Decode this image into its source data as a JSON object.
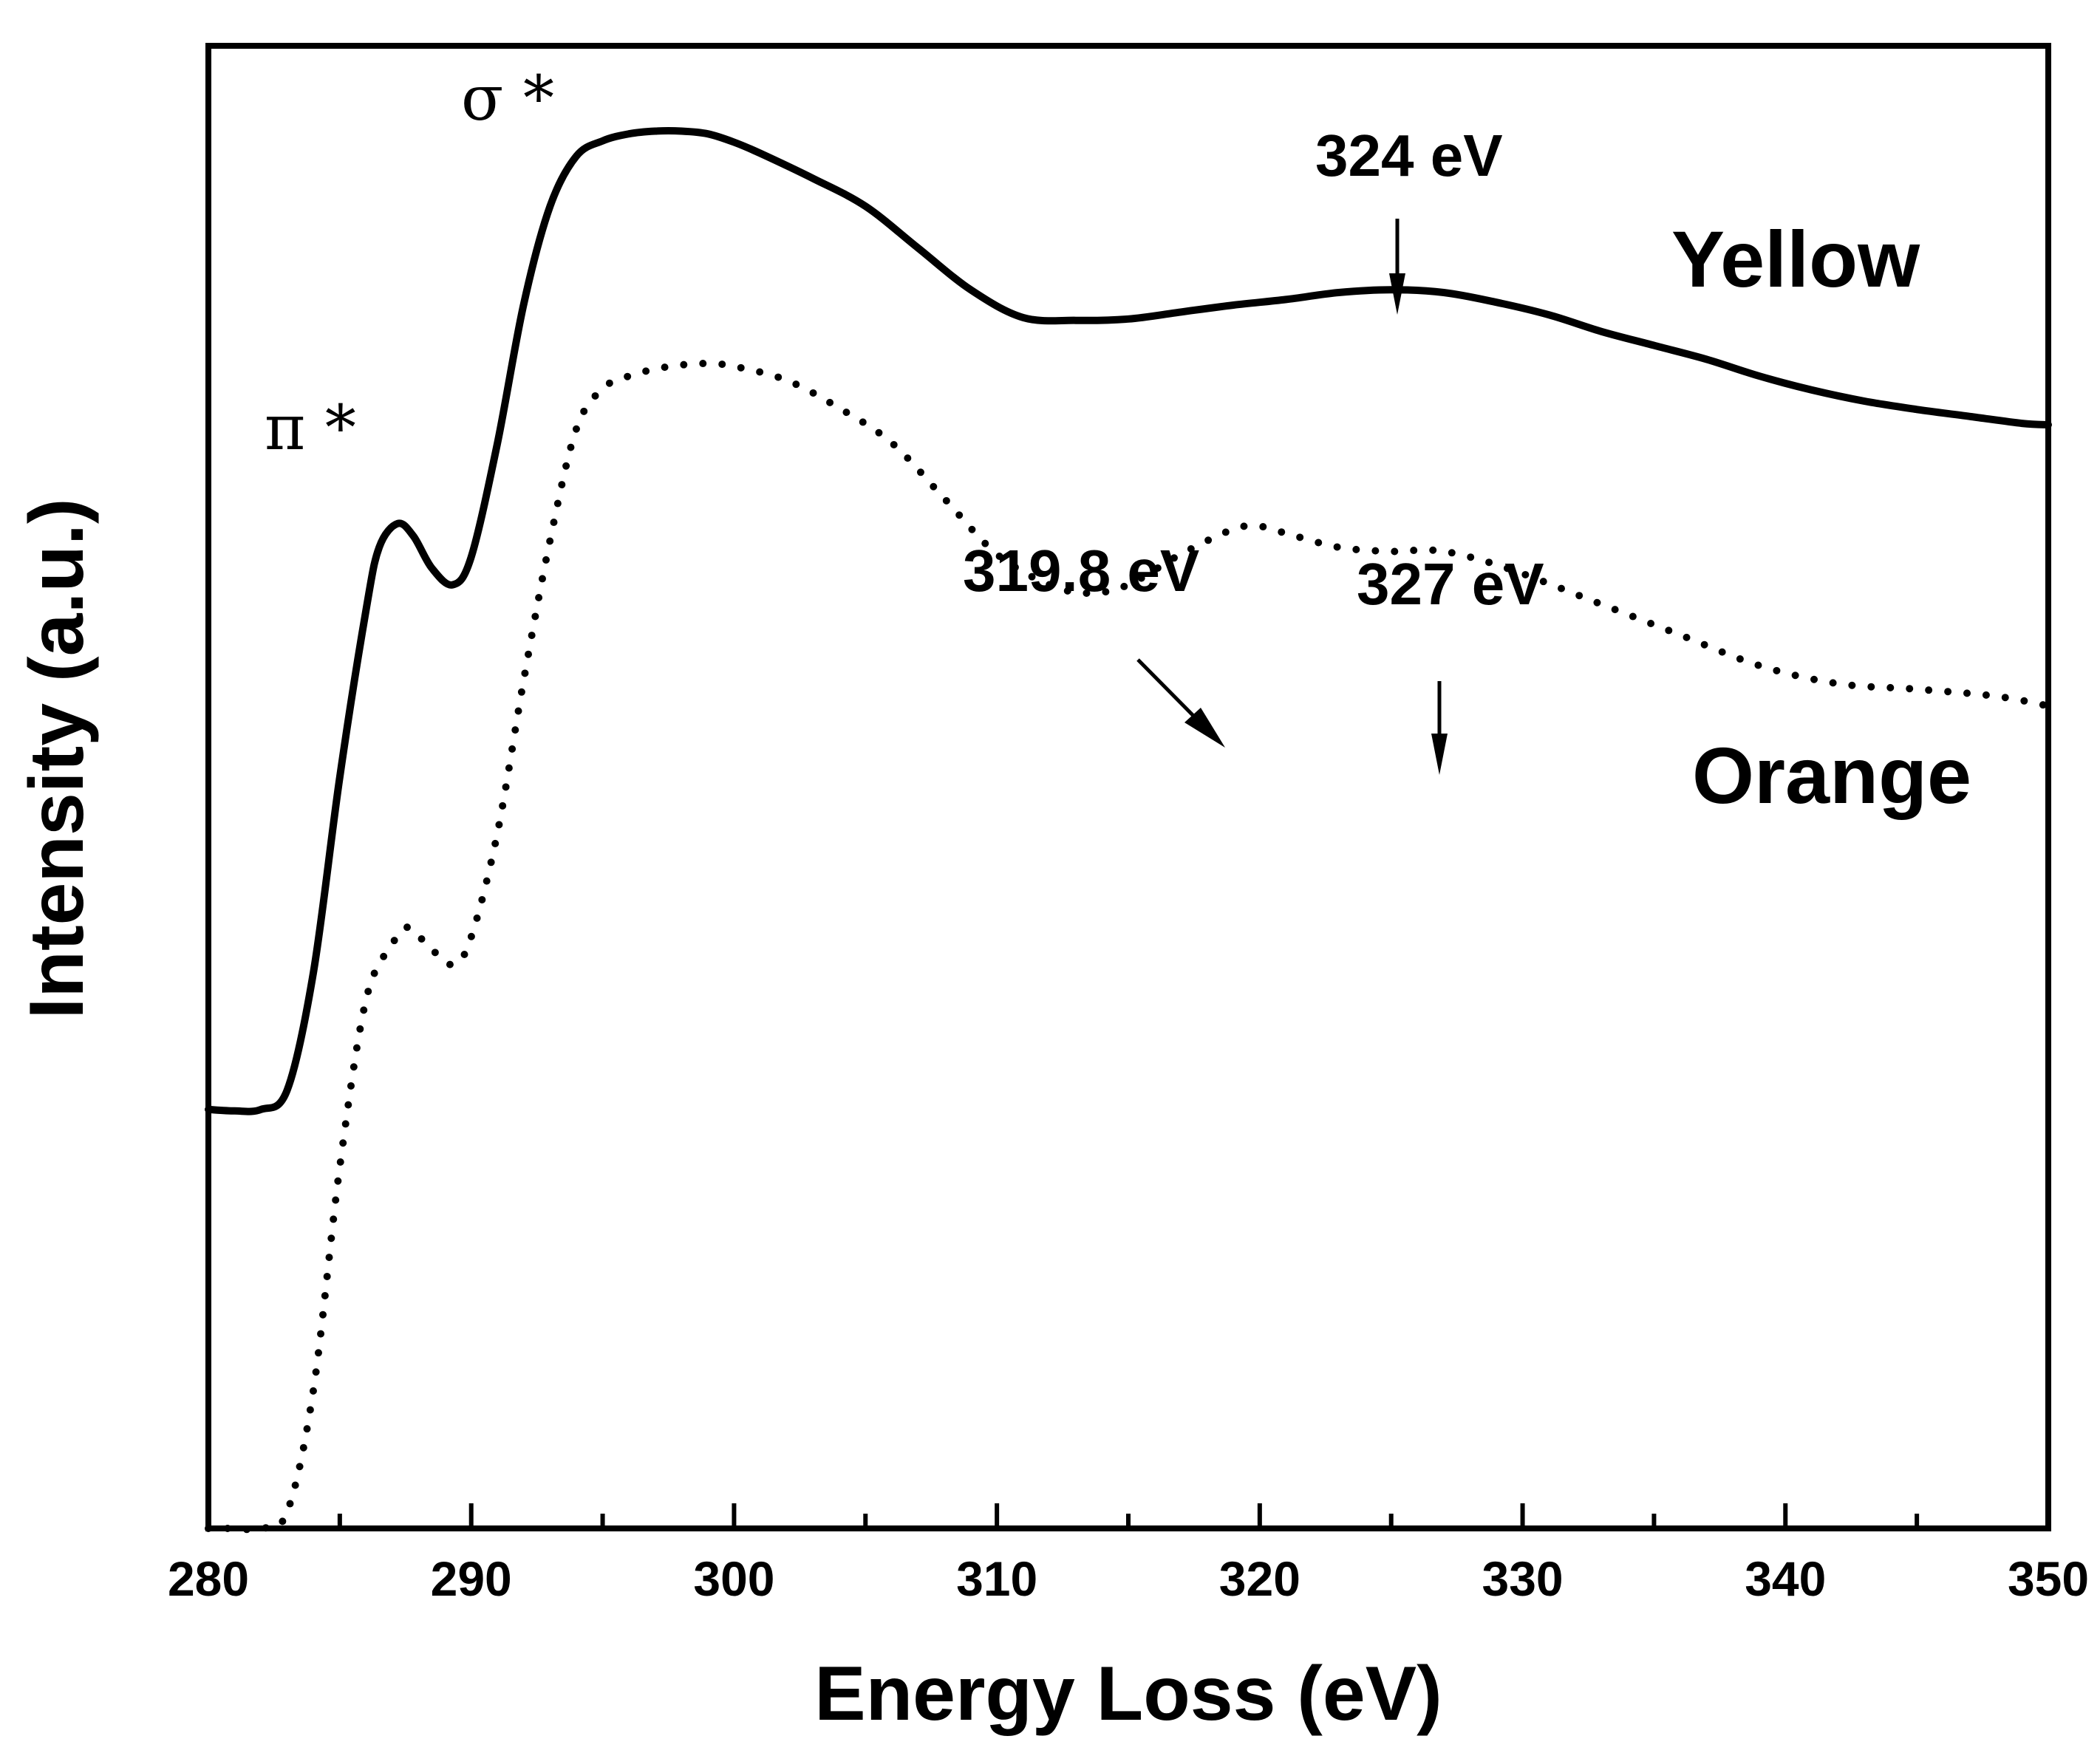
{
  "chart_data": {
    "type": "line",
    "xlabel": "Energy Loss (eV)",
    "ylabel": "Intensity (a.u.)",
    "xlim": [
      280,
      350
    ],
    "ylim": [
      0,
      100
    ],
    "x_ticks": [
      280,
      290,
      300,
      310,
      320,
      330,
      340,
      350
    ],
    "x_minor_ticks": [
      285,
      295,
      305,
      315,
      325,
      335,
      345
    ],
    "grid": false,
    "series": [
      {
        "name": "Yellow",
        "style": "solid",
        "color": "#000000",
        "x": [
          280,
          281,
          282,
          283,
          284,
          285,
          286,
          286.5,
          287.2,
          287.8,
          288.5,
          289.3,
          290,
          291,
          292,
          293,
          294,
          295,
          296,
          297,
          298,
          299,
          300,
          301,
          303,
          305,
          307,
          309,
          311,
          313,
          315,
          317,
          319,
          321,
          323,
          325,
          327,
          329,
          331,
          333,
          335,
          337,
          339,
          341,
          343,
          345,
          347,
          349,
          350
        ],
        "y": [
          30.1,
          30.0,
          30.1,
          31.5,
          40,
          54,
          66,
          70.5,
          72.2,
          71.3,
          69.0,
          67.8,
          69.8,
          78,
          88,
          95,
          98.6,
          99.7,
          100.2,
          100.4,
          100.4,
          100.2,
          99.6,
          98.8,
          97.0,
          95.0,
          92.0,
          89.0,
          87.0,
          86.8,
          86.9,
          87.4,
          87.9,
          88.3,
          88.8,
          89.0,
          88.8,
          88.1,
          87.2,
          86.0,
          85.0,
          84.0,
          82.8,
          81.8,
          81.0,
          80.4,
          79.9,
          79.4,
          79.3
        ]
      },
      {
        "name": "Orange",
        "style": "dotted",
        "color": "#000000",
        "x": [
          280,
          281,
          282,
          283,
          284,
          285,
          286,
          287,
          287.6,
          288.3,
          289.3,
          290,
          291,
          292,
          293,
          294,
          295,
          296,
          297,
          298,
          299,
          300,
          302,
          304,
          306,
          308,
          310,
          312,
          313.5,
          315,
          317,
          319,
          320,
          321,
          323,
          325,
          326.5,
          328,
          330,
          333,
          336,
          339,
          342,
          345,
          348,
          350
        ],
        "y": [
          0,
          0,
          0,
          1.2,
          10,
          26,
          38,
          42.0,
          43.2,
          42.0,
          40.5,
          42.5,
          50,
          61,
          71,
          79,
          81.9,
          82.8,
          83.3,
          83.6,
          83.7,
          83.5,
          82.5,
          80.5,
          78.0,
          74.0,
          70.0,
          67.8,
          67.2,
          67.8,
          70.0,
          71.8,
          72.0,
          71.5,
          70.5,
          70.2,
          70.3,
          69.8,
          68.6,
          66.4,
          64.2,
          62.0,
          60.7,
          60.3,
          59.8,
          59.1
        ]
      }
    ],
    "series_labels": [
      "Yellow",
      "Orange"
    ],
    "annotations": {
      "pi_label": "π *",
      "sigma_label": "σ *",
      "peak_324": {
        "text": "324 eV",
        "x": 325.3
      },
      "peak_319_8": {
        "text": "319.8 eV",
        "x": 319.0
      },
      "peak_327": {
        "text": "327 eV",
        "x": 327.0
      }
    }
  }
}
